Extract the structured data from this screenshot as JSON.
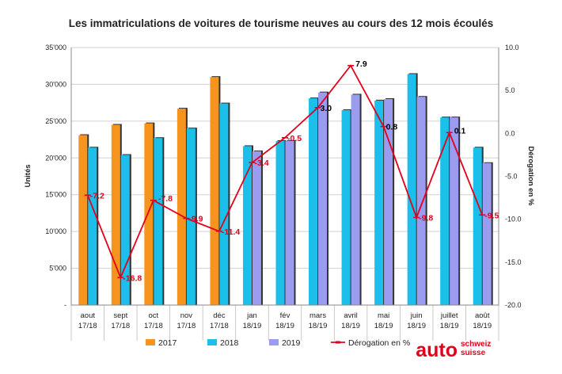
{
  "chart_data": {
    "type": "bar",
    "title": "Les immatriculations de voitures de tourisme neuves au cours des 12 mois écoulés",
    "ylabel": "Unités",
    "y2label": "Dérogation en %",
    "ylim": [
      0,
      35000
    ],
    "y2lim": [
      -20,
      10
    ],
    "yticks": [
      {
        "value": 0,
        "label": "-"
      },
      {
        "value": 5000,
        "label": "5'000"
      },
      {
        "value": 10000,
        "label": "10'000"
      },
      {
        "value": 15000,
        "label": "15'000"
      },
      {
        "value": 20000,
        "label": "20'000"
      },
      {
        "value": 25000,
        "label": "25'000"
      },
      {
        "value": 30000,
        "label": "30'000"
      },
      {
        "value": 35000,
        "label": "35'000"
      }
    ],
    "y2ticks": [
      {
        "value": 10,
        "label": "10.0"
      },
      {
        "value": 5,
        "label": "5.0"
      },
      {
        "value": 0,
        "label": "0.0"
      },
      {
        "value": -5,
        "label": "-5.0"
      },
      {
        "value": -10,
        "label": "-10.0"
      },
      {
        "value": -15,
        "label": "-15.0"
      },
      {
        "value": -20,
        "label": "-20.0"
      }
    ],
    "categories": [
      [
        "aout",
        "17/18"
      ],
      [
        "sept",
        "17/18"
      ],
      [
        "oct",
        "17/18"
      ],
      [
        "nov",
        "17/18"
      ],
      [
        "déc",
        "17/18"
      ],
      [
        "jan",
        "18/19"
      ],
      [
        "fév",
        "18/19"
      ],
      [
        "mars",
        "18/19"
      ],
      [
        "avril",
        "18/19"
      ],
      [
        "mai",
        "18/19"
      ],
      [
        "juin",
        "18/19"
      ],
      [
        "juillet",
        "18/19"
      ],
      [
        "août",
        "18/19"
      ]
    ],
    "series": [
      {
        "name": "2017",
        "color": "#f7941d",
        "values": [
          23100,
          24500,
          24700,
          26700,
          31000,
          null,
          null,
          null,
          null,
          null,
          null,
          null,
          null
        ]
      },
      {
        "name": "2018",
        "color": "#1bbfea",
        "values": [
          21400,
          20400,
          22700,
          24000,
          27400,
          21600,
          22300,
          28100,
          26500,
          27800,
          31400,
          25500,
          21400
        ]
      },
      {
        "name": "2019",
        "color": "#9b9bef",
        "values": [
          null,
          null,
          null,
          null,
          null,
          20900,
          22300,
          28900,
          28600,
          28000,
          28300,
          25500,
          19300
        ]
      }
    ],
    "line": {
      "name": "Dérogation en %",
      "color": "#e3001b",
      "values": [
        -7.2,
        -16.8,
        -7.8,
        -9.9,
        -11.4,
        -3.4,
        -0.5,
        3.0,
        7.9,
        0.8,
        -9.8,
        0.1,
        -9.5
      ],
      "labels": [
        "-7.2",
        "-16.8",
        "-7.8",
        "-9.9",
        "-11.4",
        "-3.4",
        "-0.5",
        "3.0",
        "7.9",
        "0.8",
        "-9.8",
        "0.1",
        "-9.5"
      ],
      "label_colors": [
        "red",
        "red",
        "red",
        "red",
        "red",
        "red",
        "red",
        "black",
        "black",
        "black",
        "red",
        "black",
        "red"
      ]
    },
    "grid": true,
    "legend_position": "bottom"
  },
  "brand": {
    "main": "auto",
    "line1": "schweiz",
    "line2": "suisse"
  }
}
